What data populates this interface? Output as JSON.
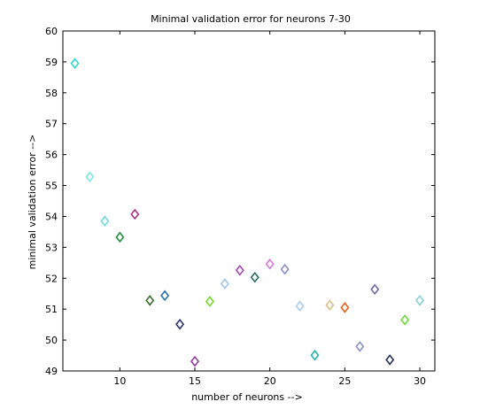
{
  "chart_data": {
    "type": "scatter",
    "title": "Minimal validation error for neurons 7-30",
    "xlabel": "number of neurons -->",
    "ylabel": "minimal validation error -->",
    "xlim": [
      6.2,
      31
    ],
    "ylim": [
      49,
      60
    ],
    "xticks": [
      10,
      15,
      20,
      25,
      30
    ],
    "yticks": [
      49,
      50,
      51,
      52,
      53,
      54,
      55,
      56,
      57,
      58,
      59,
      60
    ],
    "grid": false,
    "marker": "diamond",
    "points": [
      {
        "x": 7,
        "y": 58.95,
        "color": "#2fd6c8"
      },
      {
        "x": 8,
        "y": 55.28,
        "color": "#7ee6e6"
      },
      {
        "x": 9,
        "y": 53.85,
        "color": "#6fdada"
      },
      {
        "x": 10,
        "y": 53.33,
        "color": "#1f8f3a"
      },
      {
        "x": 11,
        "y": 54.07,
        "color": "#a8327f"
      },
      {
        "x": 12,
        "y": 51.28,
        "color": "#3b6e2c"
      },
      {
        "x": 13,
        "y": 51.44,
        "color": "#2a6fa3"
      },
      {
        "x": 14,
        "y": 50.51,
        "color": "#2b3566"
      },
      {
        "x": 15,
        "y": 49.31,
        "color": "#8e3f9e"
      },
      {
        "x": 16,
        "y": 51.25,
        "color": "#76d632"
      },
      {
        "x": 17,
        "y": 51.82,
        "color": "#9fc6e6"
      },
      {
        "x": 18,
        "y": 52.26,
        "color": "#a04aa8"
      },
      {
        "x": 19,
        "y": 52.03,
        "color": "#2a6b64"
      },
      {
        "x": 20,
        "y": 52.46,
        "color": "#d478d8"
      },
      {
        "x": 21,
        "y": 52.29,
        "color": "#8791c2"
      },
      {
        "x": 22,
        "y": 51.1,
        "color": "#a8cdee"
      },
      {
        "x": 23,
        "y": 49.51,
        "color": "#2bb3b0"
      },
      {
        "x": 24,
        "y": 51.13,
        "color": "#d8c08c"
      },
      {
        "x": 25,
        "y": 51.05,
        "color": "#e0641e"
      },
      {
        "x": 26,
        "y": 49.79,
        "color": "#8a92c8"
      },
      {
        "x": 27,
        "y": 51.64,
        "color": "#6e6aa2"
      },
      {
        "x": 28,
        "y": 49.36,
        "color": "#2a2e5c"
      },
      {
        "x": 29,
        "y": 50.65,
        "color": "#6ed640"
      },
      {
        "x": 30,
        "y": 51.28,
        "color": "#8ccfd3"
      }
    ]
  }
}
